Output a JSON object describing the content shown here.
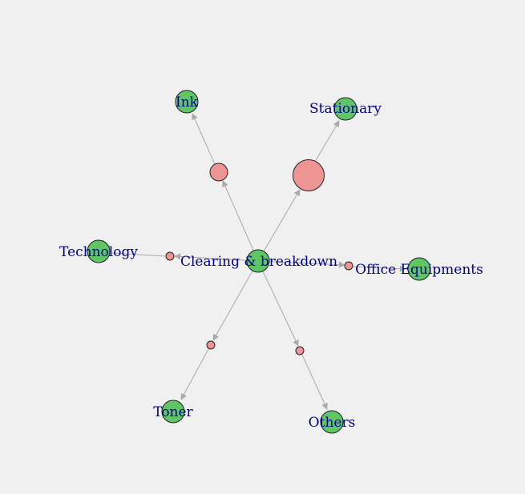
{
  "colors": {
    "background": "#f0f0f0",
    "item_node": "#5ec665",
    "rule_node": "#ee9594",
    "edge": "#aaaaaa",
    "label": "#00008b",
    "node_border": "#222222"
  },
  "nodes": {
    "center": {
      "label": "Clearing & breakdown"
    },
    "ink": {
      "label": "Ink"
    },
    "stationary": {
      "label": "Stationary"
    },
    "technology": {
      "label": "Technology"
    },
    "office": {
      "label": "Office Equipments"
    },
    "toner": {
      "label": "Toner"
    },
    "others": {
      "label": "Others"
    }
  }
}
